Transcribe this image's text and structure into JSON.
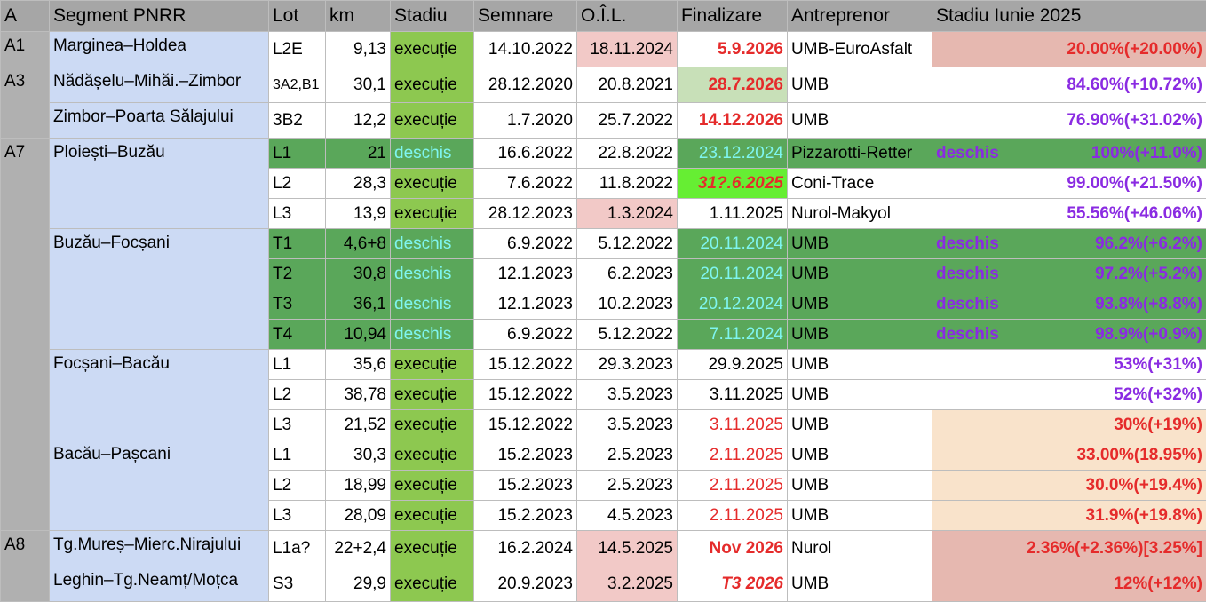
{
  "header": [
    "A",
    "Segment PNRR",
    "Lot",
    "km",
    "Stadiu",
    "Semnare",
    "O.Î.L.",
    "Finalizare",
    "Antreprenor",
    "Stadiu Iunie 2025"
  ],
  "groups": [
    {
      "a": "A1",
      "segments": [
        {
          "name": "Marginea–Holdea",
          "lots": [
            {
              "lot": "L2E",
              "km": "9,13",
              "stadiu": "execuție",
              "semnare": "14.10.2022",
              "oil": "18.11.2024",
              "fin": "5.9.2026",
              "antr": "UMB-EuroAsfalt",
              "status": "",
              "pct": "20.00%(+20.00%)"
            }
          ]
        }
      ]
    },
    {
      "a": "A3",
      "segments": [
        {
          "name": "Nădășelu–Mihăi.–Zimbor",
          "lots": [
            {
              "lot": "3A2,B1",
              "km": "30,1",
              "stadiu": "execuție",
              "semnare": "28.12.2020",
              "oil": "20.8.2021",
              "fin": "28.7.2026",
              "antr": "UMB",
              "status": "",
              "pct": "84.60%(+10.72%)"
            }
          ]
        },
        {
          "name": "Zimbor–Poarta Sălajului",
          "lots": [
            {
              "lot": "3B2",
              "km": "12,2",
              "stadiu": "execuție",
              "semnare": "1.7.2020",
              "oil": "25.7.2022",
              "fin": "14.12.2026",
              "antr": "UMB",
              "status": "",
              "pct": "76.90%(+31.02%)"
            }
          ]
        }
      ]
    },
    {
      "a": "A7",
      "segments": [
        {
          "name": "Ploiești–Buzău",
          "lots": [
            {
              "lot": "L1",
              "km": "21",
              "stadiu": "deschis",
              "semnare": "16.6.2022",
              "oil": "22.8.2022",
              "fin": "23.12.2024",
              "antr": "Pizzarotti-Retter",
              "status": "deschis",
              "pct": "100%(+11.0%)"
            },
            {
              "lot": "L2",
              "km": "28,3",
              "stadiu": "execuție",
              "semnare": "7.6.2022",
              "oil": "11.8.2022",
              "fin": "31?.6.2025",
              "antr": "Coni-Trace",
              "status": "",
              "pct": "99.00%(+21.50%)"
            },
            {
              "lot": "L3",
              "km": "13,9",
              "stadiu": "execuție",
              "semnare": "28.12.2023",
              "oil": "1.3.2024",
              "fin": "1.11.2025",
              "antr": "Nurol-Makyol",
              "status": "",
              "pct": "55.56%(+46.06%)"
            }
          ]
        },
        {
          "name": "Buzău–Focșani",
          "lots": [
            {
              "lot": "T1",
              "km": "4,6+8",
              "stadiu": "deschis",
              "semnare": "6.9.2022",
              "oil": "5.12.2022",
              "fin": "20.11.2024",
              "antr": "UMB",
              "status": "deschis",
              "pct": "96.2%(+6.2%)"
            },
            {
              "lot": "T2",
              "km": "30,8",
              "stadiu": "deschis",
              "semnare": "12.1.2023",
              "oil": "6.2.2023",
              "fin": "20.11.2024",
              "antr": "UMB",
              "status": "deschis",
              "pct": "97.2%(+5.2%)"
            },
            {
              "lot": "T3",
              "km": "36,1",
              "stadiu": "deschis",
              "semnare": "12.1.2023",
              "oil": "10.2.2023",
              "fin": "20.12.2024",
              "antr": "UMB",
              "status": "deschis",
              "pct": "93.8%(+8.8%)"
            },
            {
              "lot": "T4",
              "km": "10,94",
              "stadiu": "deschis",
              "semnare": "6.9.2022",
              "oil": "5.12.2022",
              "fin": "7.11.2024",
              "antr": "UMB",
              "status": "deschis",
              "pct": "98.9%(+0.9%)"
            }
          ]
        },
        {
          "name": "Focșani–Bacău",
          "lots": [
            {
              "lot": "L1",
              "km": "35,6",
              "stadiu": "execuție",
              "semnare": "15.12.2022",
              "oil": "29.3.2023",
              "fin": "29.9.2025",
              "antr": "UMB",
              "status": "",
              "pct": "53%(+31%)"
            },
            {
              "lot": "L2",
              "km": "38,78",
              "stadiu": "execuție",
              "semnare": "15.12.2022",
              "oil": "3.5.2023",
              "fin": "3.11.2025",
              "antr": "UMB",
              "status": "",
              "pct": "52%(+32%)"
            },
            {
              "lot": "L3",
              "km": "21,52",
              "stadiu": "execuție",
              "semnare": "15.12.2022",
              "oil": "3.5.2023",
              "fin": "3.11.2025",
              "antr": "UMB",
              "status": "",
              "pct": "30%(+19%)"
            }
          ]
        },
        {
          "name": "Bacău–Pașcani",
          "lots": [
            {
              "lot": "L1",
              "km": "30,3",
              "stadiu": "execuție",
              "semnare": "15.2.2023",
              "oil": "2.5.2023",
              "fin": "2.11.2025",
              "antr": "UMB",
              "status": "",
              "pct": "33.00%(18.95%)"
            },
            {
              "lot": "L2",
              "km": "18,99",
              "stadiu": "execuție",
              "semnare": "15.2.2023",
              "oil": "2.5.2023",
              "fin": "2.11.2025",
              "antr": "UMB",
              "status": "",
              "pct": "30.0%(+19.4%)"
            },
            {
              "lot": "L3",
              "km": "28,09",
              "stadiu": "execuție",
              "semnare": "15.2.2023",
              "oil": "4.5.2023",
              "fin": "2.11.2025",
              "antr": "UMB",
              "status": "",
              "pct": "31.9%(+19.8%)"
            }
          ]
        }
      ]
    },
    {
      "a": "A8",
      "segments": [
        {
          "name": "Tg.Mureș–Mierc.Nirajului",
          "lots": [
            {
              "lot": "L1a?",
              "km": "22+2,4",
              "stadiu": "execuție",
              "semnare": "16.2.2024",
              "oil": "14.5.2025",
              "fin": "Nov 2026",
              "antr": "Nurol",
              "status": "",
              "pct": "2.36%(+2.36%)[3.25%]"
            }
          ]
        },
        {
          "name": "Leghin–Tg.Neamț/Moțca",
          "lots": [
            {
              "lot": "S3",
              "km": "29,9",
              "stadiu": "execuție",
              "semnare": "20.9.2023",
              "oil": "3.2.2025",
              "fin": "T3 2026",
              "antr": "UMB",
              "status": "",
              "pct": "12%(+12%)"
            }
          ]
        }
      ]
    }
  ]
}
